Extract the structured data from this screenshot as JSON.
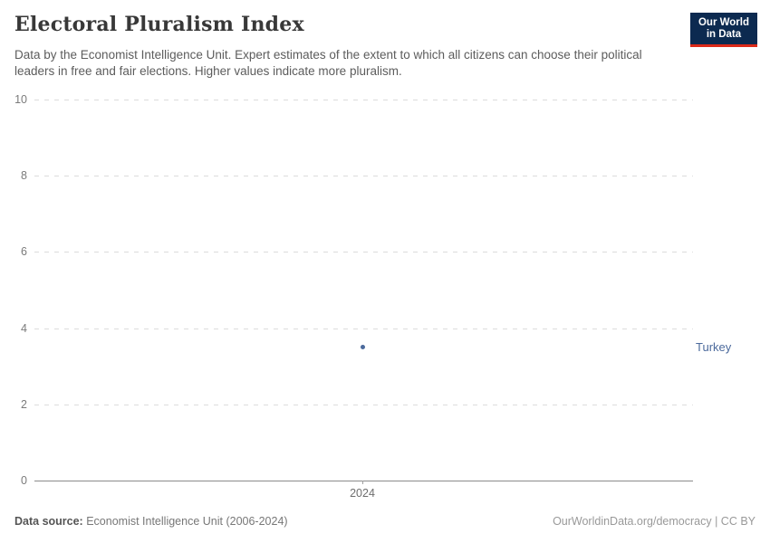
{
  "header": {
    "title": "Electoral Pluralism Index",
    "subtitle": "Data by the Economist Intelligence Unit. Expert estimates of the extent to which all citizens can choose their political leaders in free and fair elections. Higher values indicate more pluralism."
  },
  "logo": {
    "line1": "Our World",
    "line2": "in Data"
  },
  "chart_data": {
    "type": "scatter",
    "title": "Electoral Pluralism Index",
    "x": [
      "2024"
    ],
    "series": [
      {
        "name": "Turkey",
        "values": [
          3.5
        ]
      }
    ],
    "ylim": [
      0,
      10
    ],
    "yticks": [
      0,
      2,
      4,
      6,
      8,
      10
    ],
    "grid": "horizontal-dashed",
    "entity_label_position": "right"
  },
  "footer": {
    "datasource_label": "Data source:",
    "datasource_value": " Economist Intelligence Unit (2006-2024)",
    "credit": "OurWorldinData.org/democracy | CC BY"
  },
  "colors": {
    "series_turkey": "#4c6a9c",
    "logo_background": "#0c2a50",
    "logo_underline": "#dc2a19"
  }
}
